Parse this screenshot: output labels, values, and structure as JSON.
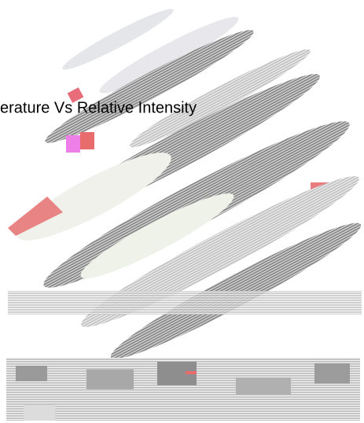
{
  "title": "erature Vs Relative Intensity"
}
